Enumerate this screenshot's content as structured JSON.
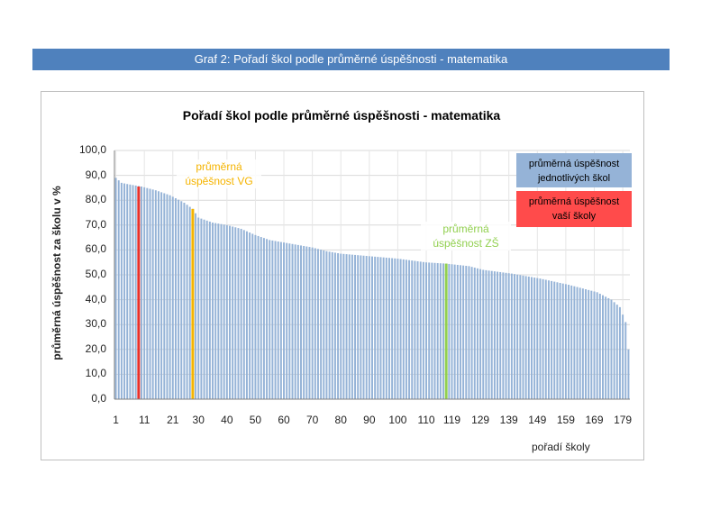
{
  "banner": "Graf 2: Pořadí škol podle průměrné úspěšnosti - matematika",
  "colors": {
    "bars": "#95b3d7",
    "your_school": "#e8312b",
    "vg_average": "#f5b400",
    "zs_average": "#92d050",
    "banner": "#4f81bd"
  },
  "chart_data": {
    "type": "bar",
    "title": "Pořadí škol podle průměrné úspěšnosti - matematika",
    "xlabel": "pořadí  školy",
    "ylabel": "průměrná úspěšnost  za školu v %",
    "ylim": [
      0,
      100
    ],
    "y_ticks": [
      "0,0",
      "10,0",
      "20,0",
      "30,0",
      "40,0",
      "50,0",
      "60,0",
      "70,0",
      "80,0",
      "90,0",
      "100,0"
    ],
    "x_ticks": [
      "1",
      "11",
      "21",
      "30",
      "40",
      "50",
      "60",
      "70",
      "80",
      "90",
      "100",
      "110",
      "119",
      "129",
      "139",
      "149",
      "159",
      "169",
      "179"
    ],
    "grid": true,
    "legend_position": "top-right",
    "legend": [
      {
        "label_line1": "průměrná úspěšnost",
        "label_line2": "jednotlivých škol",
        "color": "#95b3d7"
      },
      {
        "label_line1": "průměrná úspěšnost",
        "label_line2": "vaší školy",
        "color": "#ff4b4b"
      }
    ],
    "annotations": [
      {
        "label_line1": "průměrná",
        "label_line2": "úspěšnost VG",
        "color": "#f5b400",
        "rank": 28,
        "value": 76.5
      },
      {
        "label_line1": "průměrná",
        "label_line2": "úspěšnost ZŠ",
        "color": "#92d050",
        "rank": 117,
        "value": 54.5
      }
    ],
    "your_school": {
      "rank": 9,
      "value": 85.5
    },
    "profile_points": [
      [
        1,
        89
      ],
      [
        3,
        87
      ],
      [
        5,
        86.5
      ],
      [
        10,
        85.5
      ],
      [
        15,
        84
      ],
      [
        20,
        82
      ],
      [
        25,
        79
      ],
      [
        28,
        76.5
      ],
      [
        30,
        73
      ],
      [
        35,
        71
      ],
      [
        40,
        70
      ],
      [
        45,
        68.5
      ],
      [
        50,
        66
      ],
      [
        55,
        64
      ],
      [
        60,
        63
      ],
      [
        65,
        62
      ],
      [
        70,
        61
      ],
      [
        75,
        59.5
      ],
      [
        80,
        58.5
      ],
      [
        90,
        57.5
      ],
      [
        100,
        56.5
      ],
      [
        110,
        55
      ],
      [
        117,
        54.5
      ],
      [
        125,
        53.5
      ],
      [
        130,
        52
      ],
      [
        140,
        50.5
      ],
      [
        150,
        48.5
      ],
      [
        160,
        46
      ],
      [
        170,
        43
      ],
      [
        175,
        40
      ],
      [
        178,
        37
      ],
      [
        180,
        31
      ],
      [
        181,
        20
      ]
    ]
  }
}
